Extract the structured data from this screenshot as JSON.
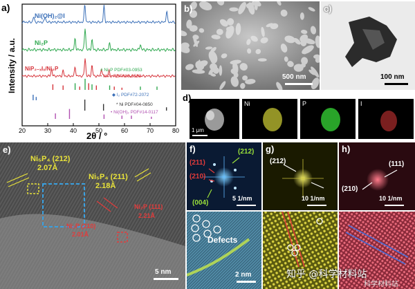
{
  "panel_a": {
    "label": "a)",
    "ylabel": "Intensity / a.u.",
    "xlabel": "2θ / °",
    "xticks": [
      "20",
      "30",
      "40",
      "50",
      "60",
      "70",
      "80"
    ],
    "series": [
      {
        "name": "Ni(OH)₂@I",
        "color": "#3a6fb8"
      },
      {
        "name": "Ni₂P",
        "color": "#2fa84f"
      },
      {
        "name": "NiP₂₋ₓIₓ/Ni₂P",
        "color": "#d6333a"
      }
    ],
    "refs": [
      {
        "name": "# Ni₂P PDF#03-0953",
        "color": "#2fa84f"
      },
      {
        "name": "• NiP₂ PDF#89-2588",
        "color": "#d6333a"
      },
      {
        "name": "◆ I₂ PDF#72-2072",
        "color": "#3a6fb8"
      },
      {
        "name": "* Ni PDF#04-0850",
        "color": "#333333"
      },
      {
        "name": "• Ni(OH)₂ PDF#14-0117",
        "color": "#b04fb0"
      }
    ]
  },
  "chart_data": {
    "type": "line",
    "xlabel": "2θ / °",
    "ylabel": "Intensity / a.u.",
    "xlim": [
      20,
      80
    ],
    "series": [
      {
        "name": "Ni(OH)₂@I",
        "peaks": [
          [
            24.5,
            0.3
          ],
          [
            29,
            0.3
          ],
          [
            44.5,
            1.0
          ],
          [
            52,
            0.9
          ],
          [
            76.5,
            0.6
          ]
        ]
      },
      {
        "name": "Ni₂P",
        "peaks": [
          [
            40.7,
            0.5
          ],
          [
            44.6,
            1.0
          ],
          [
            47.3,
            0.45
          ],
          [
            54.2,
            0.3
          ],
          [
            66.2,
            0.25
          ]
        ]
      },
      {
        "name": "NiP₂₋ₓIₓ/Ni₂P",
        "peaks": [
          [
            31.5,
            0.4
          ],
          [
            36,
            0.3
          ],
          [
            40.7,
            0.5
          ],
          [
            44.6,
            1.0
          ],
          [
            47.3,
            0.6
          ],
          [
            51,
            0.4
          ],
          [
            54,
            0.3
          ]
        ]
      }
    ]
  },
  "panel_b": {
    "label": "b)",
    "scale": "500 nm"
  },
  "panel_c": {
    "label": "c)",
    "scale": "100 nm"
  },
  "panel_d": {
    "label": "d)",
    "scale": "1 μm",
    "maps": [
      "Ni",
      "P",
      "I"
    ]
  },
  "panel_e": {
    "label": "e)",
    "ann1_name": "Ni₅P₄ (212)",
    "ann1_val": "2.07Å",
    "ann2_name": "Ni₅P₄ (211)",
    "ann2_val": "2.18Å",
    "ann3_name": "Ni₂P (111)",
    "ann3_val": "2.21Å",
    "ann4_name": "Ni₂P (210)",
    "ann4_val": "2.01Å",
    "scale": "5 nm"
  },
  "panel_f": {
    "label": "f)",
    "spots": [
      "(212)",
      "(211)",
      "(210)",
      "(004)"
    ],
    "scale": "5 1/nm",
    "defects": "Defects",
    "scale2": "2 nm"
  },
  "panel_g": {
    "label": "g)",
    "spot": "(212)",
    "scale": "10 1/nm"
  },
  "panel_h": {
    "label": "h)",
    "spot1": "(111)",
    "spot2": "(210)",
    "scale": "10 1/nm"
  },
  "watermark": {
    "line1": "知乎 @科学材料站",
    "line2": "科学材料站"
  },
  "colors": {
    "yellow": "#e8e23a",
    "blue": "#3aa0e0",
    "red": "#e33b3b"
  }
}
